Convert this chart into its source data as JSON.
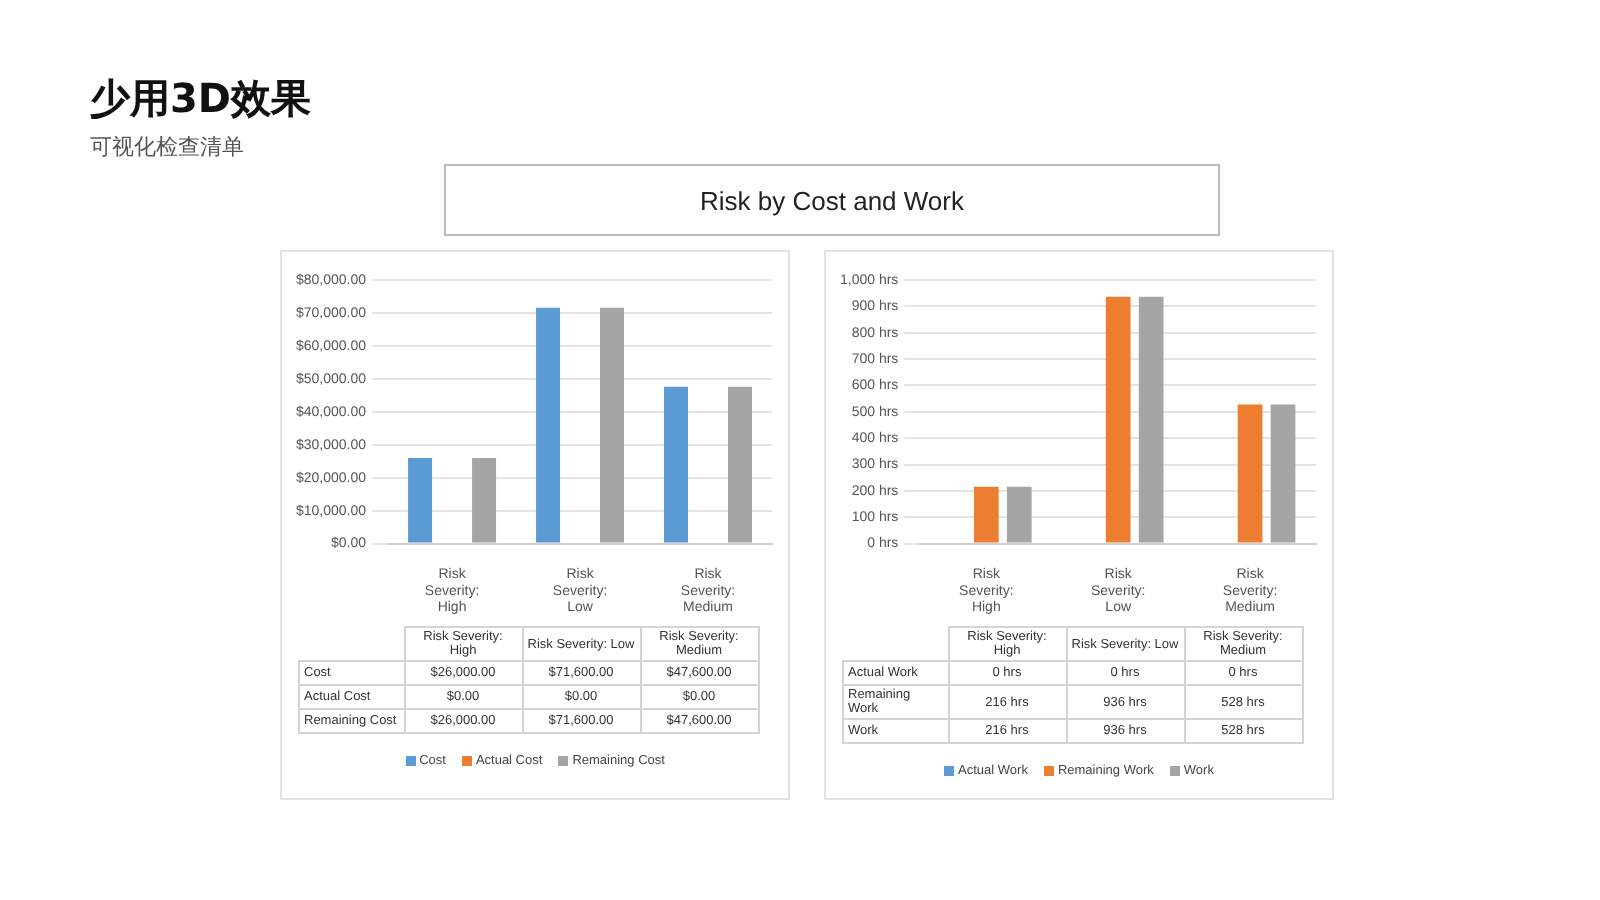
{
  "chart_data": [
    {
      "type": "bar",
      "title": "少用3D效果",
      "subtitle": "可视化检查清单",
      "annotations": [
        "Risk by Cost and Work"
      ],
      "categories": [
        "Risk Severity: High",
        "Risk Severity: Low",
        "Risk Severity: Medium"
      ],
      "series": [
        {
          "name": "Cost",
          "color": "#5b9bd5",
          "values": [
            26000,
            71600,
            47600
          ],
          "value_labels": [
            "$26,000.00",
            "$71,600.00",
            "$47,600.00"
          ]
        },
        {
          "name": "Actual Cost",
          "color": "#ed7d31",
          "values": [
            0,
            0,
            0
          ],
          "value_labels": [
            "$0.00",
            "$0.00",
            "$0.00"
          ]
        },
        {
          "name": "Remaining Cost",
          "color": "#a5a5a5",
          "values": [
            26000,
            71600,
            47600
          ],
          "value_labels": [
            "$26,000.00",
            "$71,600.00",
            "$47,600.00"
          ]
        }
      ],
      "ylim": [
        0,
        80000
      ],
      "yticks": [
        {
          "value": 0,
          "label": "$0.00"
        },
        {
          "value": 10000,
          "label": "$10,000.00"
        },
        {
          "value": 20000,
          "label": "$20,000.00"
        },
        {
          "value": 30000,
          "label": "$30,000.00"
        },
        {
          "value": 40000,
          "label": "$40,000.00"
        },
        {
          "value": 50000,
          "label": "$50,000.00"
        },
        {
          "value": 60000,
          "label": "$60,000.00"
        },
        {
          "value": 70000,
          "label": "$70,000.00"
        },
        {
          "value": 80000,
          "label": "$80,000.00"
        }
      ],
      "grid": "y",
      "legend": "bottom"
    },
    {
      "type": "bar",
      "categories": [
        "Risk Severity: High",
        "Risk Severity: Low",
        "Risk Severity: Medium"
      ],
      "series": [
        {
          "name": "Actual Work",
          "color": "#5b9bd5",
          "values": [
            0,
            0,
            0
          ],
          "value_labels": [
            "0 hrs",
            "0 hrs",
            "0 hrs"
          ]
        },
        {
          "name": "Remaining Work",
          "color": "#ed7d31",
          "values": [
            216,
            936,
            528
          ],
          "value_labels": [
            "216 hrs",
            "936 hrs",
            "528 hrs"
          ]
        },
        {
          "name": "Work",
          "color": "#a5a5a5",
          "values": [
            216,
            936,
            528
          ],
          "value_labels": [
            "216 hrs",
            "936 hrs",
            "528 hrs"
          ]
        }
      ],
      "ylim": [
        0,
        1000
      ],
      "yticks": [
        {
          "value": 0,
          "label": "0 hrs"
        },
        {
          "value": 100,
          "label": "100 hrs"
        },
        {
          "value": 200,
          "label": "200 hrs"
        },
        {
          "value": 300,
          "label": "300 hrs"
        },
        {
          "value": 400,
          "label": "400 hrs"
        },
        {
          "value": 500,
          "label": "500 hrs"
        },
        {
          "value": 600,
          "label": "600 hrs"
        },
        {
          "value": 700,
          "label": "700 hrs"
        },
        {
          "value": 800,
          "label": "800 hrs"
        },
        {
          "value": 900,
          "label": "900 hrs"
        },
        {
          "value": 1000,
          "label": "1,000 hrs"
        }
      ],
      "grid": "y",
      "legend": "bottom"
    }
  ]
}
